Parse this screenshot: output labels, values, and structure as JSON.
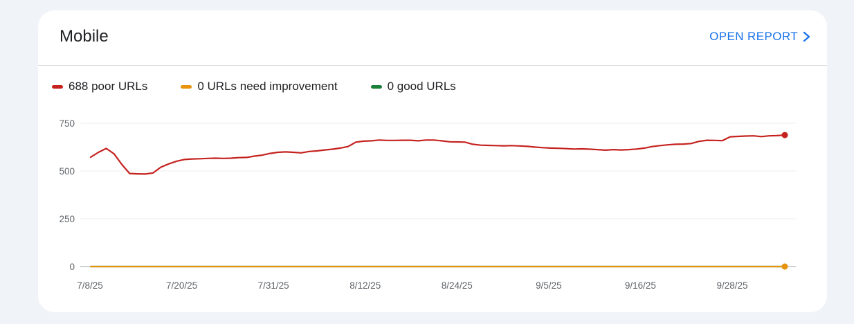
{
  "card": {
    "title": "Mobile",
    "open_report_label": "OPEN REPORT"
  },
  "chart_data": {
    "type": "line",
    "title": "",
    "xlabel": "",
    "ylabel": "",
    "ylim": [
      0,
      750
    ],
    "yticks": [
      0,
      250,
      500,
      750
    ],
    "xtick_labels": [
      "7/8/25",
      "7/20/25",
      "7/31/25",
      "8/12/25",
      "8/24/25",
      "9/5/25",
      "9/16/25",
      "9/28/25"
    ],
    "grid": true,
    "legend_position": "top-left",
    "series": [
      {
        "name": "688 poor URLs",
        "color": "#c5221f",
        "values": [
          572,
          598,
          618,
          590,
          534,
          487,
          485,
          484,
          490,
          520,
          537,
          551,
          560,
          563,
          564,
          566,
          567,
          566,
          567,
          570,
          571,
          578,
          583,
          592,
          598,
          600,
          598,
          595,
          602,
          605,
          610,
          614,
          620,
          628,
          651,
          656,
          658,
          662,
          660,
          660,
          661,
          661,
          658,
          662,
          662,
          658,
          653,
          652,
          651,
          640,
          635,
          634,
          633,
          632,
          633,
          631,
          629,
          625,
          622,
          620,
          619,
          617,
          615,
          616,
          614,
          612,
          609,
          612,
          610,
          612,
          615,
          620,
          628,
          633,
          637,
          640,
          641,
          644,
          655,
          661,
          660,
          659,
          679,
          681,
          683,
          684,
          680,
          684,
          685,
          688
        ]
      },
      {
        "name": "0 URLs need improvement",
        "color": "#e8930c",
        "values": [
          0,
          0,
          0,
          0,
          0,
          0,
          0,
          0,
          0,
          0,
          0,
          0,
          0,
          0,
          0,
          0,
          0,
          0,
          0,
          0,
          0,
          0,
          0,
          0,
          0,
          0,
          0,
          0,
          0,
          0,
          0,
          0,
          0,
          0,
          0,
          0,
          0,
          0,
          0,
          0,
          0,
          0,
          0,
          0,
          0,
          0,
          0,
          0,
          0,
          0,
          0,
          0,
          0,
          0,
          0,
          0,
          0,
          0,
          0,
          0,
          0,
          0,
          0,
          0,
          0,
          0,
          0,
          0,
          0,
          0,
          0,
          0,
          0,
          0,
          0,
          0,
          0,
          0,
          0,
          0,
          0,
          0,
          0,
          0,
          0,
          0,
          0,
          0,
          0,
          0
        ]
      },
      {
        "name": "0 good URLs",
        "color": "#188038",
        "values": [
          0,
          0,
          0,
          0,
          0,
          0,
          0,
          0,
          0,
          0,
          0,
          0,
          0,
          0,
          0,
          0,
          0,
          0,
          0,
          0,
          0,
          0,
          0,
          0,
          0,
          0,
          0,
          0,
          0,
          0,
          0,
          0,
          0,
          0,
          0,
          0,
          0,
          0,
          0,
          0,
          0,
          0,
          0,
          0,
          0,
          0,
          0,
          0,
          0,
          0,
          0,
          0,
          0,
          0,
          0,
          0,
          0,
          0,
          0,
          0,
          0,
          0,
          0,
          0,
          0,
          0,
          0,
          0,
          0,
          0,
          0,
          0,
          0,
          0,
          0,
          0,
          0,
          0,
          0,
          0,
          0,
          0,
          0,
          0,
          0,
          0,
          0,
          0,
          0,
          0
        ]
      }
    ]
  }
}
